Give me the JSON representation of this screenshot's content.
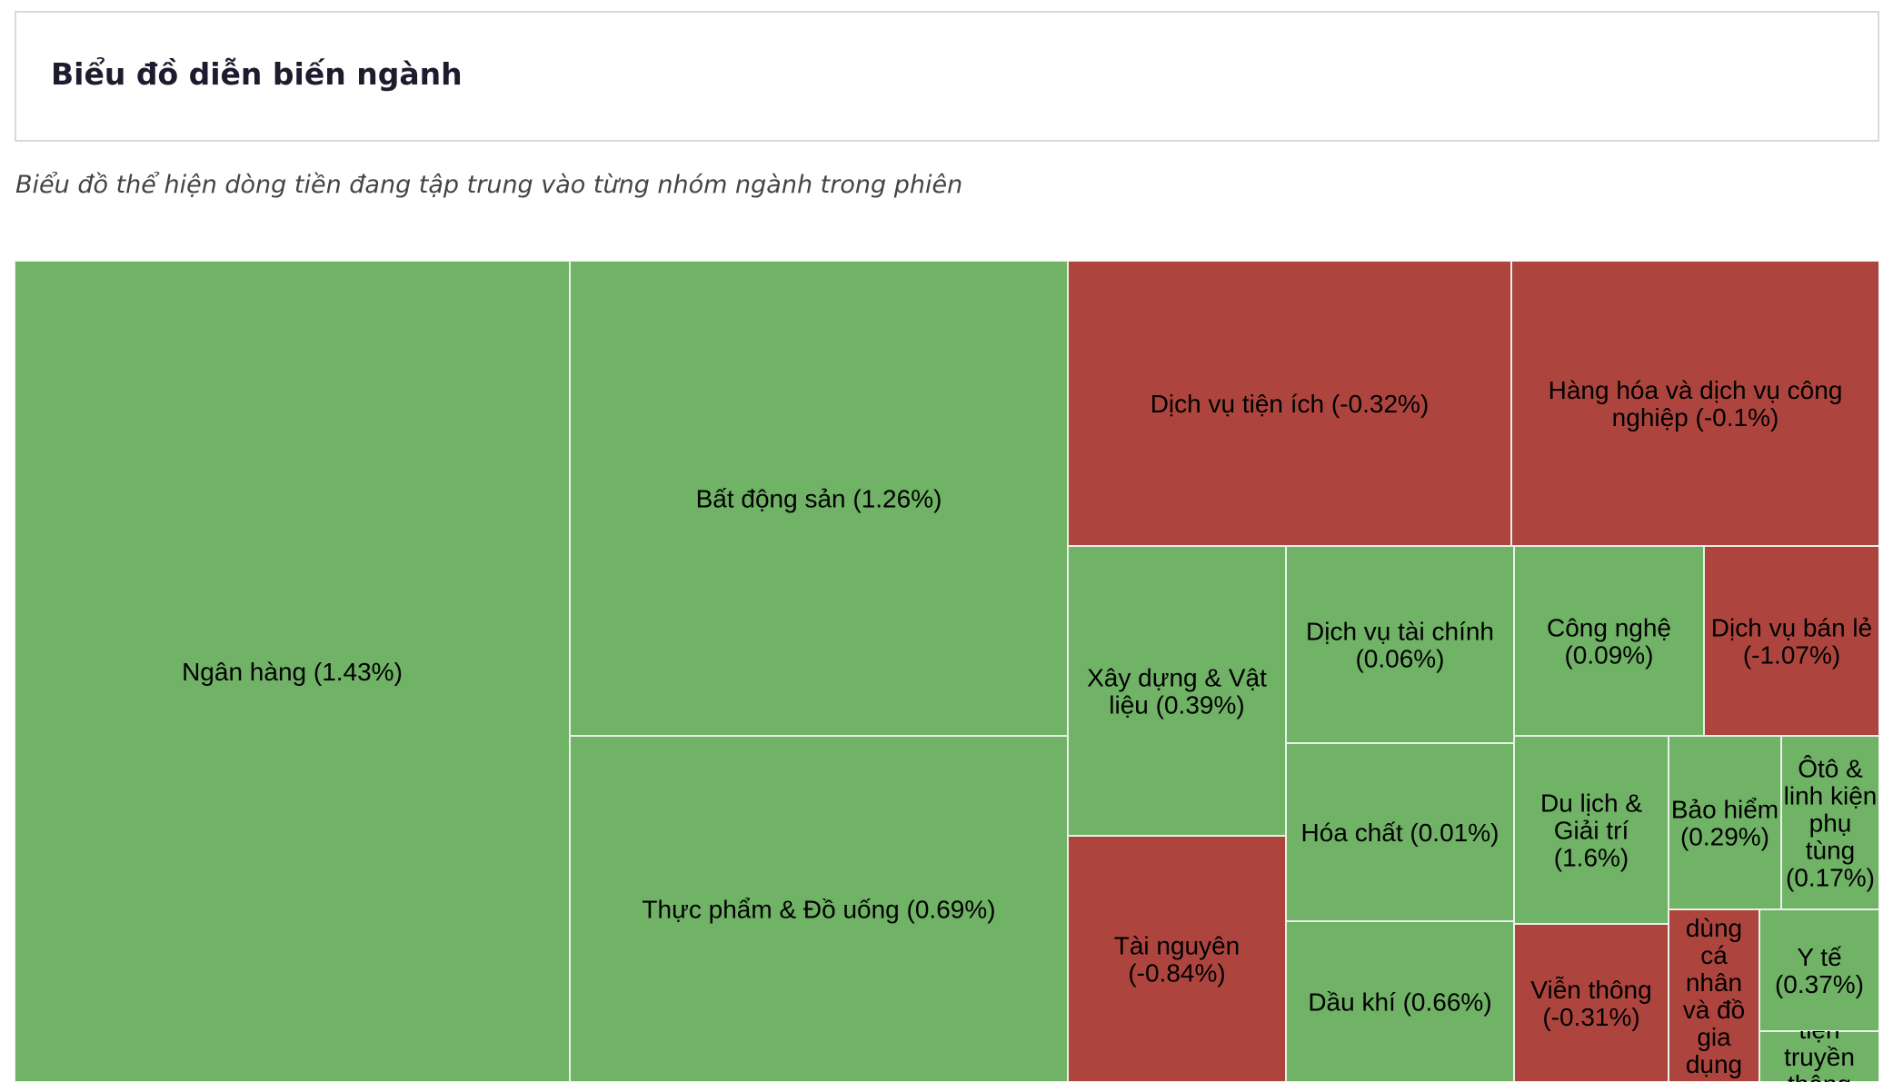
{
  "header": {
    "title": "Biểu đồ diễn biến ngành"
  },
  "subtitle": "Biểu đồ thể hiện dòng tiền đang tập trung vào từng nhóm ngành trong phiên",
  "colors": {
    "positive": "#70b266",
    "negative": "#ad453e",
    "border": "#e8f0e8"
  },
  "chart_data": {
    "type": "treemap",
    "title": "",
    "items": [
      {
        "name": "Ngân hàng",
        "change": "1.43%",
        "value": 1.43,
        "color": "#70b266",
        "lines": [
          "Ngân hàng (1.43%)"
        ]
      },
      {
        "name": "Bất động sản",
        "change": "1.26%",
        "value": 1.26,
        "color": "#70b266",
        "lines": [
          "Bất động sản (1.26%)"
        ]
      },
      {
        "name": "Thực phẩm & Đồ uống",
        "change": "0.69%",
        "value": 0.69,
        "color": "#70b266",
        "lines": [
          "Thực phẩm & Đồ uống (0.69%)"
        ]
      },
      {
        "name": "Dịch vụ tiện ích",
        "change": "-0.32%",
        "value": -0.32,
        "color": "#ad453e",
        "lines": [
          "Dịch vụ tiện ích (-0.32%)"
        ]
      },
      {
        "name": "Hàng hóa và dịch vụ công nghiệp",
        "change": "-0.1%",
        "value": -0.1,
        "color": "#ad453e",
        "lines": [
          "Hàng hóa và dịch vụ công",
          "nghiệp (-0.1%)"
        ]
      },
      {
        "name": "Xây dựng & Vật liệu",
        "change": "0.39%",
        "value": 0.39,
        "color": "#70b266",
        "lines": [
          "Xây dựng & Vật",
          "liệu (0.39%)"
        ]
      },
      {
        "name": "Tài nguyên",
        "change": "-0.84%",
        "value": -0.84,
        "color": "#ad453e",
        "lines": [
          "Tài nguyên",
          "(-0.84%)"
        ]
      },
      {
        "name": "Dịch vụ tài chính",
        "change": "0.06%",
        "value": 0.06,
        "color": "#70b266",
        "lines": [
          "Dịch vụ tài chính",
          "(0.06%)"
        ]
      },
      {
        "name": "Hóa chất",
        "change": "0.01%",
        "value": 0.01,
        "color": "#70b266",
        "lines": [
          "Hóa chất (0.01%)"
        ]
      },
      {
        "name": "Dầu khí",
        "change": "0.66%",
        "value": 0.66,
        "color": "#70b266",
        "lines": [
          "Dầu khí (0.66%)"
        ]
      },
      {
        "name": "Công nghệ",
        "change": "0.09%",
        "value": 0.09,
        "color": "#70b266",
        "lines": [
          "Công nghệ",
          "(0.09%)"
        ]
      },
      {
        "name": "Dịch vụ bán lẻ",
        "change": "-1.07%",
        "value": -1.07,
        "color": "#ad453e",
        "lines": [
          "Dịch vụ bán lẻ",
          "(-1.07%)"
        ]
      },
      {
        "name": "Du lịch & Giải trí",
        "change": "1.6%",
        "value": 1.6,
        "color": "#70b266",
        "lines": [
          "Du lịch &",
          "Giải trí",
          "(1.6%)"
        ]
      },
      {
        "name": "Bảo hiểm",
        "change": "0.29%",
        "value": 0.29,
        "color": "#70b266",
        "lines": [
          "Bảo hiểm",
          "(0.29%)"
        ]
      },
      {
        "name": "Ôtô & linh kiện phụ tùng",
        "change": "0.17%",
        "value": 0.17,
        "color": "#70b266",
        "lines": [
          "Ôtô &",
          "linh kiện",
          "phụ",
          "tùng",
          "(0.17%)"
        ]
      },
      {
        "name": "Viễn thông",
        "change": "-0.31%",
        "value": -0.31,
        "color": "#ad453e",
        "lines": [
          "Viễn thông",
          "(-0.31%)"
        ]
      },
      {
        "name": "Hàng cá nhân và đồ gia dụng",
        "change": "",
        "value": null,
        "color": "#ad453e",
        "lines": [
          "dùng",
          "cá",
          "nhân",
          "và đồ",
          "gia",
          "dụng"
        ]
      },
      {
        "name": "Y tế",
        "change": "0.37%",
        "value": 0.37,
        "color": "#70b266",
        "lines": [
          "Y tế",
          "(0.37%)"
        ]
      },
      {
        "name": "Truyền thông",
        "change": "",
        "value": null,
        "color": "#70b266",
        "lines": [
          "tiện",
          "truyền",
          "thông"
        ]
      }
    ]
  }
}
